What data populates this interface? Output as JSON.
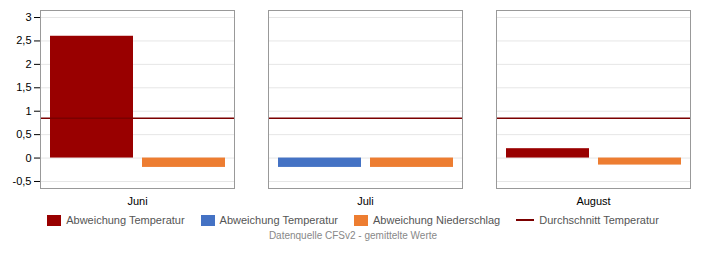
{
  "chart_data": {
    "type": "bar",
    "categories": [
      "Juni",
      "Juli",
      "August"
    ],
    "series": [
      {
        "name": "Abweichung Temperatur",
        "values": [
          2.6,
          -0.2,
          0.2
        ],
        "colors": [
          "#990000",
          "#4472c4",
          "#990000"
        ]
      },
      {
        "name": "Abweichung Niederschlag",
        "values": [
          -0.2,
          -0.2,
          -0.15
        ],
        "color": "#ed7d31"
      },
      {
        "name": "Durchschnitt Temperatur",
        "type": "hline",
        "value": 0.85,
        "color": "#7b0000"
      }
    ],
    "ylim": [
      -0.65,
      3.15
    ],
    "yticks": [
      {
        "value": -0.5,
        "label": "-0,5"
      },
      0,
      {
        "value": 0.5,
        "label": "0,5"
      },
      1,
      {
        "value": 1.5,
        "label": "1,5"
      },
      2,
      {
        "value": 2.5,
        "label": "2,5"
      },
      3
    ],
    "grid": true,
    "caption": "Datenquelle CFSv2 - gemittelte Werte"
  }
}
